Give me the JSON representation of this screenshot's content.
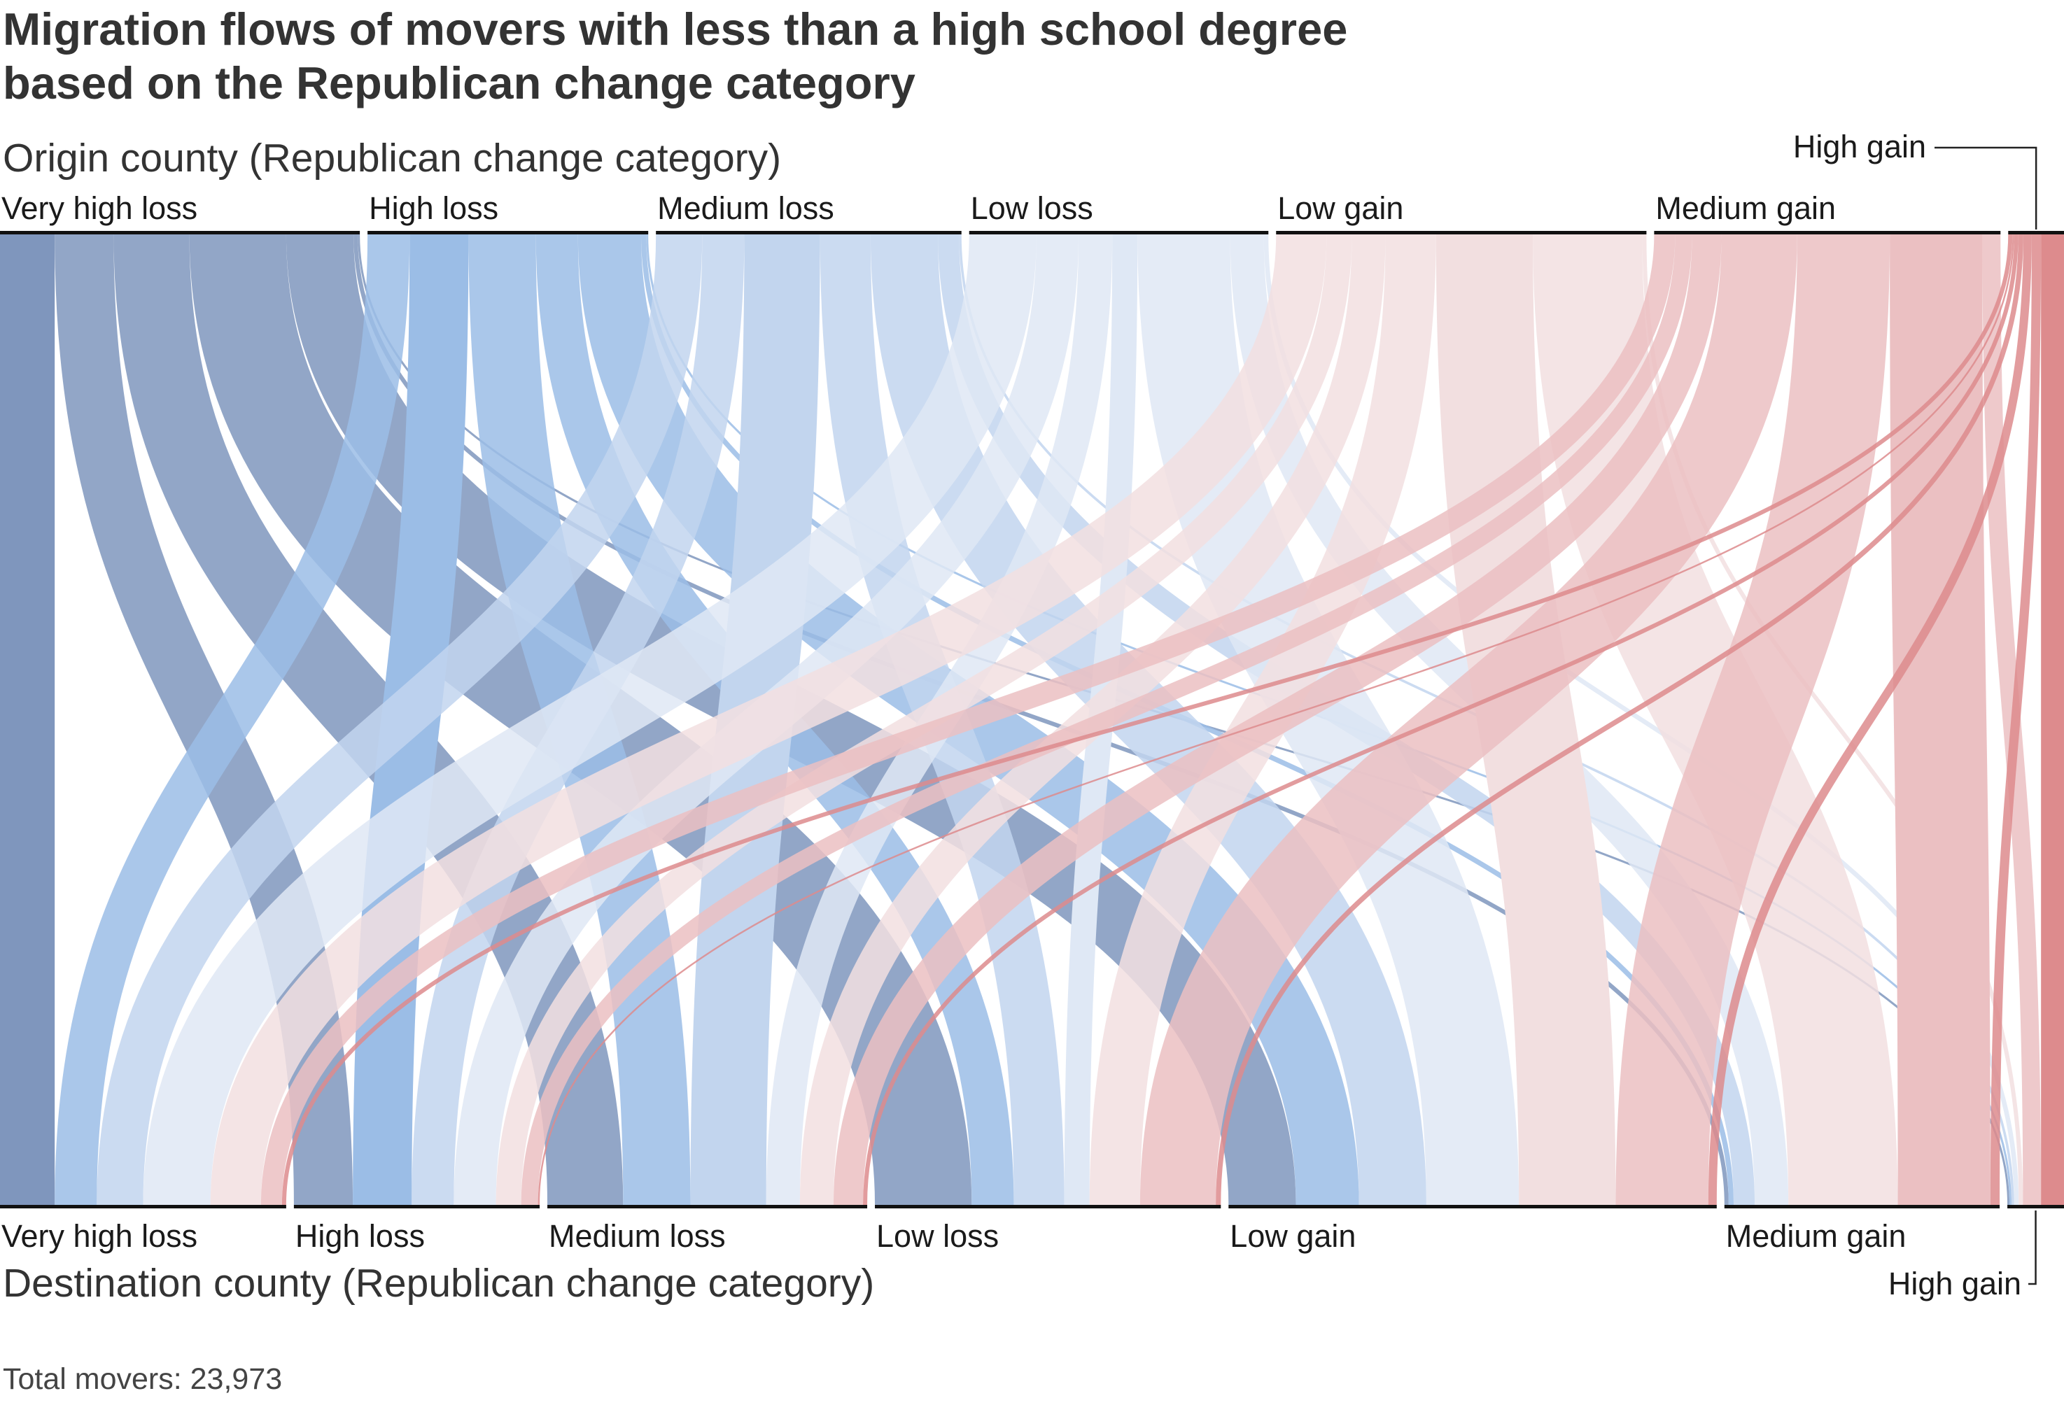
{
  "chart_data": {
    "type": "sankey",
    "title": "Migration flows of movers with less than a high school degree based on the Republican change category",
    "title_lines": [
      "Migration flows of movers with less than a high school degree",
      "based on the Republican change category"
    ],
    "origin_axis_label": "Origin county (Republican change category)",
    "destination_axis_label": "Destination county (Republican change category)",
    "categories": [
      "Very high loss",
      "High loss",
      "Medium loss",
      "Low loss",
      "Low gain",
      "Medium gain",
      "High gain"
    ],
    "category_colors": [
      "#7f96bd",
      "#9bbde6",
      "#c2d5ee",
      "#dfe8f5",
      "#f2dfe0",
      "#ebc0c2",
      "#dd8b8d"
    ],
    "origin_totals": [
      4275,
      3335,
      3630,
      3555,
      4400,
      4115,
      663
    ],
    "destination_totals": [
      3400,
      2920,
      3800,
      4110,
      5800,
      3270,
      673
    ],
    "flows": [
      {
        "from": "Very high loss",
        "to": "Very high loss",
        "value": 650
      },
      {
        "from": "Very high loss",
        "to": "High loss",
        "value": 700
      },
      {
        "from": "Very high loss",
        "to": "Medium loss",
        "value": 900
      },
      {
        "from": "Very high loss",
        "to": "Low loss",
        "value": 1150
      },
      {
        "from": "Very high loss",
        "to": "Low gain",
        "value": 800
      },
      {
        "from": "Very high loss",
        "to": "Medium gain",
        "value": 50
      },
      {
        "from": "Very high loss",
        "to": "High gain",
        "value": 25
      },
      {
        "from": "High loss",
        "to": "Very high loss",
        "value": 500
      },
      {
        "from": "High loss",
        "to": "High loss",
        "value": 700
      },
      {
        "from": "High loss",
        "to": "Medium loss",
        "value": 800
      },
      {
        "from": "High loss",
        "to": "Low loss",
        "value": 500
      },
      {
        "from": "High loss",
        "to": "Low gain",
        "value": 750
      },
      {
        "from": "High loss",
        "to": "Medium gain",
        "value": 60
      },
      {
        "from": "High loss",
        "to": "High gain",
        "value": 25
      },
      {
        "from": "Medium loss",
        "to": "Very high loss",
        "value": 550
      },
      {
        "from": "Medium loss",
        "to": "High loss",
        "value": 500
      },
      {
        "from": "Medium loss",
        "to": "Medium loss",
        "value": 900
      },
      {
        "from": "Medium loss",
        "to": "Low loss",
        "value": 600
      },
      {
        "from": "Medium loss",
        "to": "Low gain",
        "value": 800
      },
      {
        "from": "Medium loss",
        "to": "Medium gain",
        "value": 250
      },
      {
        "from": "Medium loss",
        "to": "High gain",
        "value": 30
      },
      {
        "from": "Low loss",
        "to": "Very high loss",
        "value": 800
      },
      {
        "from": "Low loss",
        "to": "High loss",
        "value": 500
      },
      {
        "from": "Low loss",
        "to": "Medium loss",
        "value": 400
      },
      {
        "from": "Low loss",
        "to": "Low loss",
        "value": 300
      },
      {
        "from": "Low loss",
        "to": "Low gain",
        "value": 1100
      },
      {
        "from": "Low loss",
        "to": "Medium gain",
        "value": 400
      },
      {
        "from": "Low loss",
        "to": "High gain",
        "value": 55
      },
      {
        "from": "Low gain",
        "to": "Very high loss",
        "value": 600
      },
      {
        "from": "Low gain",
        "to": "High loss",
        "value": 300
      },
      {
        "from": "Low gain",
        "to": "Medium loss",
        "value": 400
      },
      {
        "from": "Low gain",
        "to": "Low loss",
        "value": 600
      },
      {
        "from": "Low gain",
        "to": "Low gain",
        "value": 1150
      },
      {
        "from": "Low gain",
        "to": "Medium gain",
        "value": 1300
      },
      {
        "from": "Low gain",
        "to": "High gain",
        "value": 50
      },
      {
        "from": "Medium gain",
        "to": "Very high loss",
        "value": 250
      },
      {
        "from": "Medium gain",
        "to": "High loss",
        "value": 200
      },
      {
        "from": "Medium gain",
        "to": "Medium loss",
        "value": 350
      },
      {
        "from": "Medium gain",
        "to": "Low loss",
        "value": 900
      },
      {
        "from": "Medium gain",
        "to": "Low gain",
        "value": 1100
      },
      {
        "from": "Medium gain",
        "to": "Medium gain",
        "value": 1100
      },
      {
        "from": "Medium gain",
        "to": "High gain",
        "value": 215
      },
      {
        "from": "High gain",
        "to": "Very high loss",
        "value": 50
      },
      {
        "from": "High gain",
        "to": "High loss",
        "value": 20
      },
      {
        "from": "High gain",
        "to": "Medium loss",
        "value": 50
      },
      {
        "from": "High gain",
        "to": "Low loss",
        "value": 60
      },
      {
        "from": "High gain",
        "to": "Low gain",
        "value": 100
      },
      {
        "from": "High gain",
        "to": "Medium gain",
        "value": 110
      },
      {
        "from": "High gain",
        "to": "High gain",
        "value": 273
      }
    ],
    "total_note": "Total movers: 23,973",
    "total_movers": 23973
  }
}
